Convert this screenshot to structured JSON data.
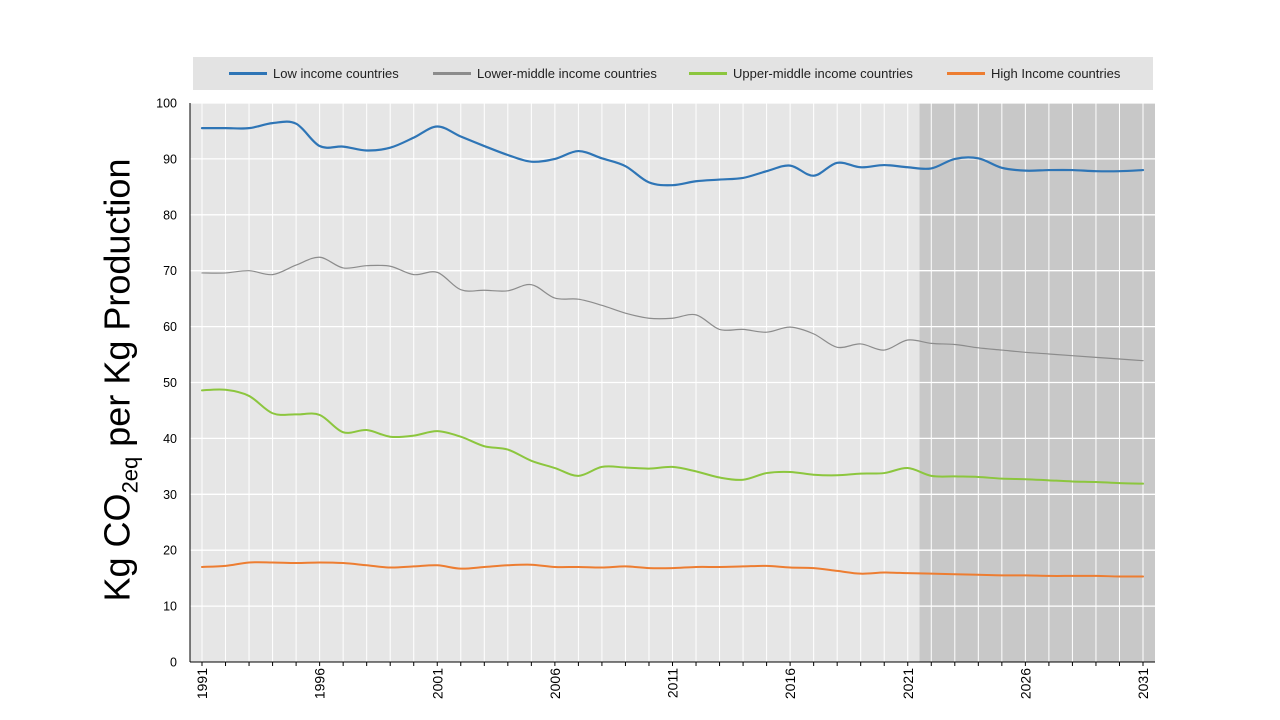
{
  "chart_data": {
    "type": "line",
    "ylabel": {
      "prefix": "Kg CO",
      "subscript": "2eq",
      "suffix": " per Kg Production"
    },
    "xlim": [
      1991,
      2031
    ],
    "ylim": [
      0,
      100
    ],
    "y_ticks": [
      "0",
      "10",
      "20",
      "30",
      "40",
      "50",
      "60",
      "70",
      "80",
      "90",
      "100"
    ],
    "x_ticks": [
      "1991",
      "1996",
      "2001",
      "2006",
      "2011",
      "2016",
      "2021",
      "2026",
      "2031"
    ],
    "projection_shading": {
      "from": 2022,
      "to": 2031
    },
    "grid": true,
    "legend_position": "top",
    "x": [
      1991,
      1992,
      1993,
      1994,
      1995,
      1996,
      1997,
      1998,
      1999,
      2000,
      2001,
      2002,
      2003,
      2004,
      2005,
      2006,
      2007,
      2008,
      2009,
      2010,
      2011,
      2012,
      2013,
      2014,
      2015,
      2016,
      2017,
      2018,
      2019,
      2020,
      2021,
      2022,
      2023,
      2024,
      2025,
      2026,
      2027,
      2028,
      2029,
      2030,
      2031
    ],
    "series": [
      {
        "name": "Low income countries",
        "color": "#2e75b6",
        "width": 2.2,
        "values": [
          95.5,
          95.5,
          95.5,
          96.4,
          96.3,
          92.3,
          92.2,
          91.5,
          92.0,
          93.8,
          95.8,
          94.0,
          92.3,
          90.7,
          89.5,
          90.0,
          91.4,
          90.1,
          88.7,
          85.8,
          85.3,
          86.0,
          86.3,
          86.6,
          87.8,
          88.8,
          87.0,
          89.3,
          88.5,
          88.9,
          88.5,
          88.3,
          90.0,
          90.1,
          88.4,
          87.9,
          88.0,
          88.0,
          87.8,
          87.8,
          88.0
        ]
      },
      {
        "name": "Lower-middle income countries",
        "color": "#8c8c8c",
        "width": 1.2,
        "values": [
          69.6,
          69.6,
          70.0,
          69.3,
          71.0,
          72.4,
          70.5,
          70.9,
          70.8,
          69.3,
          69.7,
          66.6,
          66.5,
          66.4,
          67.5,
          65.1,
          64.9,
          63.8,
          62.4,
          61.5,
          61.5,
          62.1,
          59.5,
          59.5,
          59.0,
          59.9,
          58.7,
          56.3,
          56.9,
          55.8,
          57.6,
          57.0,
          56.8,
          56.2,
          55.8,
          55.4,
          55.1,
          54.8,
          54.5,
          54.2,
          53.9
        ]
      },
      {
        "name": "Upper-middle income countries",
        "color": "#8cc63e",
        "width": 2,
        "values": [
          48.6,
          48.7,
          47.6,
          44.5,
          44.3,
          44.2,
          41.1,
          41.5,
          40.3,
          40.5,
          41.3,
          40.3,
          38.6,
          38.0,
          36.0,
          34.7,
          33.3,
          34.9,
          34.8,
          34.6,
          34.9,
          34.1,
          33.0,
          32.6,
          33.8,
          34.0,
          33.5,
          33.4,
          33.7,
          33.8,
          34.7,
          33.3,
          33.2,
          33.1,
          32.8,
          32.7,
          32.5,
          32.3,
          32.2,
          32.0,
          31.9
        ]
      },
      {
        "name": "High Income countries",
        "color": "#ed7d31",
        "width": 2,
        "values": [
          17.0,
          17.2,
          17.8,
          17.8,
          17.7,
          17.8,
          17.7,
          17.3,
          16.9,
          17.1,
          17.3,
          16.7,
          17.0,
          17.3,
          17.4,
          17.0,
          17.0,
          16.9,
          17.1,
          16.8,
          16.8,
          17.0,
          17.0,
          17.1,
          17.2,
          16.9,
          16.8,
          16.3,
          15.8,
          16.0,
          15.9,
          15.8,
          15.7,
          15.6,
          15.5,
          15.5,
          15.4,
          15.4,
          15.4,
          15.3,
          15.3
        ]
      }
    ]
  }
}
